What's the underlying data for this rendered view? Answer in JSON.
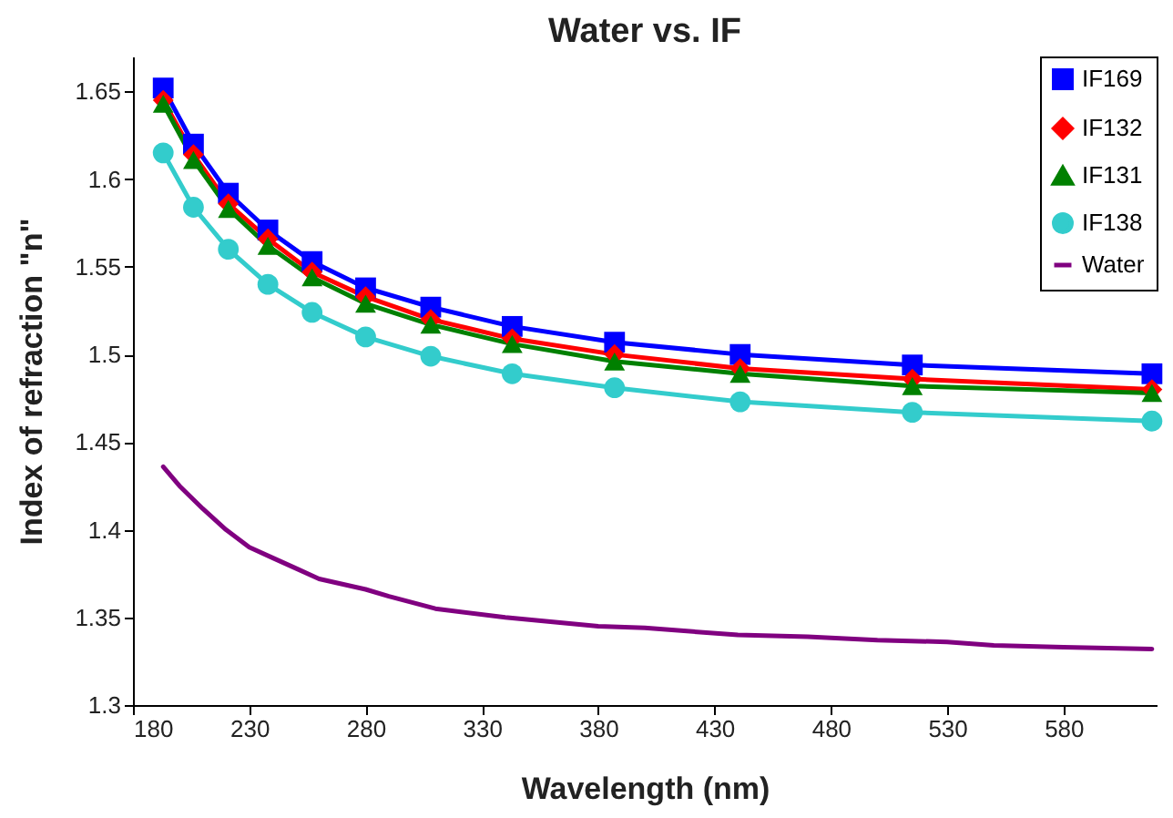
{
  "chart_data": {
    "type": "line",
    "title": "Water vs. IF",
    "xlabel": "Wavelength (nm)",
    "ylabel": "Index of refraction \"n\"",
    "xlim": [
      180,
      620
    ],
    "xticks": [
      180,
      230,
      280,
      330,
      380,
      430,
      480,
      530,
      580
    ],
    "ylim": [
      1.3,
      1.67
    ],
    "yticks": [
      1.3,
      1.35,
      1.4,
      1.45,
      1.5,
      1.55,
      1.6,
      1.65
    ],
    "x": [
      193,
      206,
      221,
      238,
      257,
      280,
      308,
      343,
      387,
      441,
      515,
      618
    ],
    "grid": false,
    "legend": "top right",
    "series": [
      {
        "name": "IF169",
        "color": "#0000ff",
        "marker": "square",
        "values": [
          1.652,
          1.62,
          1.592,
          1.571,
          1.553,
          1.538,
          1.527,
          1.516,
          1.507,
          1.5,
          1.494,
          1.489
        ]
      },
      {
        "name": "IF132",
        "color": "#ff0000",
        "marker": "diamond",
        "values": [
          1.645,
          1.614,
          1.586,
          1.566,
          1.547,
          1.533,
          1.52,
          1.509,
          1.5,
          1.492,
          1.486,
          1.48
        ]
      },
      {
        "name": "IF131",
        "color": "#008000",
        "marker": "triangle",
        "values": [
          1.643,
          1.611,
          1.583,
          1.562,
          1.544,
          1.529,
          1.517,
          1.506,
          1.496,
          1.489,
          1.482,
          1.478
        ]
      },
      {
        "name": "IF138",
        "color": "#33cccc",
        "marker": "circle",
        "values": [
          1.615,
          1.584,
          1.56,
          1.54,
          1.524,
          1.51,
          1.499,
          1.489,
          1.481,
          1.473,
          1.467,
          1.462
        ]
      },
      {
        "name": "Water",
        "color": "#800080",
        "marker": "none",
        "x": [
          193,
          200,
          210,
          220,
          230,
          240,
          250,
          260,
          280,
          290,
          310,
          340,
          380,
          400,
          440,
          470,
          500,
          530,
          550,
          580,
          618
        ],
        "values": [
          1.436,
          1.425,
          1.412,
          1.4,
          1.39,
          1.384,
          1.378,
          1.372,
          1.366,
          1.362,
          1.355,
          1.35,
          1.345,
          1.344,
          1.34,
          1.339,
          1.337,
          1.336,
          1.334,
          1.333,
          1.332
        ]
      }
    ]
  }
}
